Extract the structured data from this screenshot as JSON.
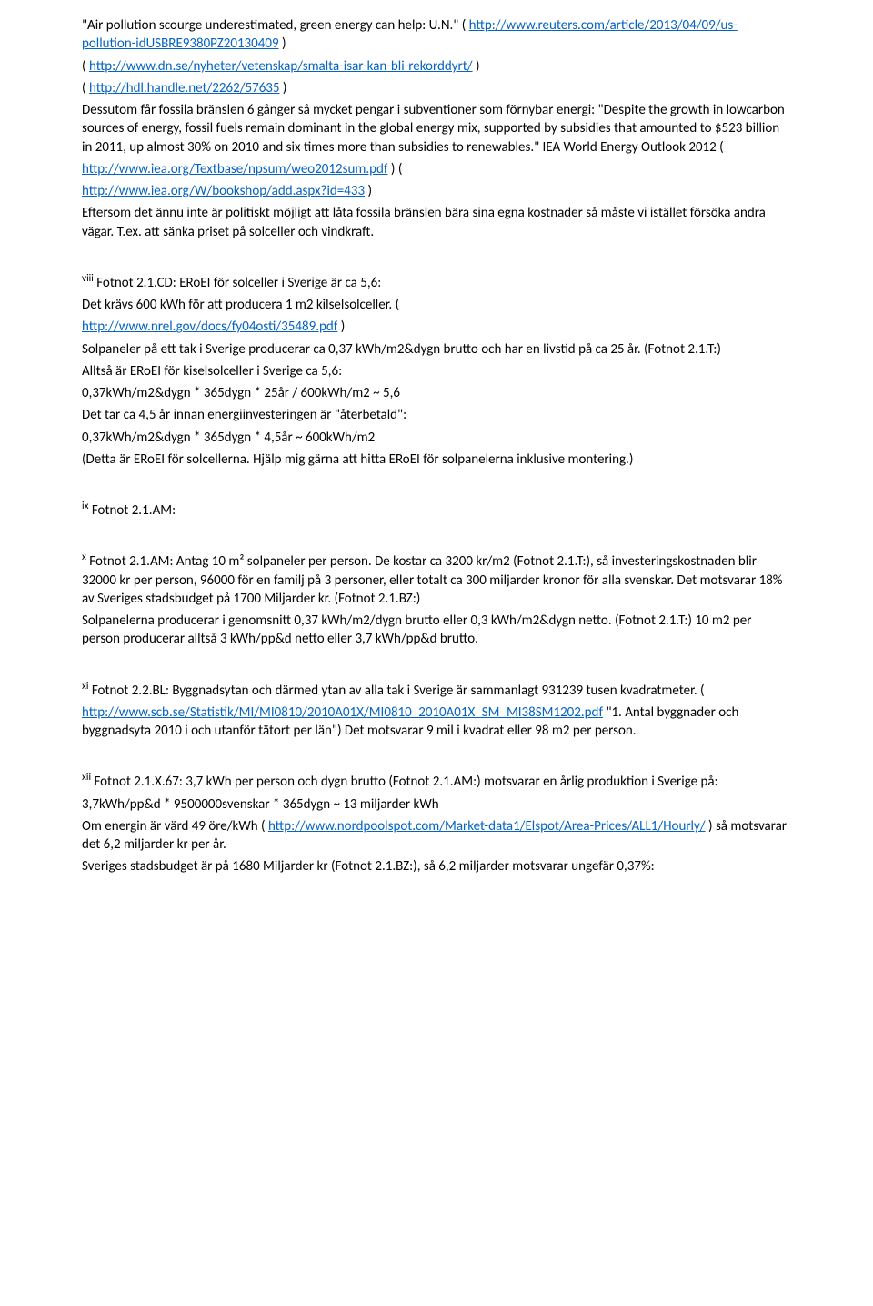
{
  "colors": {
    "text": "#000000",
    "link": "#0563c1",
    "background": "#ffffff"
  },
  "typography": {
    "font_family": "Calibri, Arial, sans-serif",
    "base_font_size_pt": 11,
    "line_height": 1.35
  },
  "b1": {
    "l1a": "\"Air pollution scourge underestimated, green energy can help: U.N.\"   (",
    "l1_link": "http://www.reuters.com/article/2013/04/09/us-pollution-idUSBRE9380PZ20130409",
    "l1b": " )",
    "l2a": "( ",
    "l2_link": "http://www.dn.se/nyheter/vetenskap/smalta-isar-kan-bli-rekorddyrt/",
    "l2b": " )",
    "l3a": "( ",
    "l3_link": "http://hdl.handle.net/2262/57635",
    "l3b": " )",
    "t4": "Dessutom får fossila bränslen 6 gånger så mycket pengar i subventioner som förnybar energi: \"Despite the growth in lowcarbon sources of energy, fossil fuels remain dominant in the global energy mix, supported by subsidies that amounted to $523 billion in 2011, up almost 30% on 2010 and six times more than subsidies to renewables.\"  IEA World Energy Outlook 2012   (",
    "l5_link": "http://www.iea.org/Textbase/npsum/weo2012sum.pdf",
    "l5b": " ) (",
    "l6_link": "http://www.iea.org/W/bookshop/add.aspx?id=433",
    "l6b": " )",
    "t7": "Eftersom det ännu inte är politiskt möjligt att låta fossila bränslen bära sina egna kostnader så måste vi istället försöka andra vägar. T.ex. att sänka priset på solceller och vindkraft."
  },
  "b2": {
    "sup": "viii",
    "h": " Fotnot 2.1.CD: ERoEI för solceller i Sverige är ca 5,6:",
    "t1": "Det krävs 600 kWh för att producera 1 m2 kilselsolceller. (",
    "link": "http://www.nrel.gov/docs/fy04osti/35489.pdf",
    "t1b": " )",
    "t2": "Solpaneler på ett tak i Sverige producerar ca 0,37 kWh/m2&dygn brutto och har en livstid på ca 25 år. (Fotnot 2.1.T:)",
    "t3": "Alltså är ERoEI för kiselsolceller i Sverige ca 5,6:",
    "t4": "0,37kWh/m2&dygn * 365dygn * 25år / 600kWh/m2 ~ 5,6",
    "t5": "Det tar ca 4,5 år innan energiinvesteringen är \"återbetald\":",
    "t6": "0,37kWh/m2&dygn * 365dygn * 4,5år ~ 600kWh/m2",
    "t7": "(Detta är ERoEI för solcellerna. Hjälp mig gärna att hitta ERoEI för solpanelerna inklusive montering.)"
  },
  "b3": {
    "sup": "ix",
    "h": " Fotnot 2.1.AM:"
  },
  "b4": {
    "sup": "x",
    "h": " Fotnot 2.1.AM: Antag 10 m² solpaneler per person. De kostar ca 3200 kr/m2 (Fotnot 2.1.T:), så investeringskostnaden blir 32000 kr per person, 96000 för en familj på 3 personer, eller totalt ca 300 miljarder kronor för alla svenskar. Det motsvarar 18% av Sveriges stadsbudget på 1700 Miljarder kr. (Fotnot 2.1.BZ:)",
    "t1": "Solpanelerna producerar i genomsnitt 0,37 kWh/m2/dygn brutto eller 0,3 kWh/m2&dygn netto. (Fotnot 2.1.T:) 10 m2 per person producerar alltså 3 kWh/pp&d netto eller 3,7 kWh/pp&d brutto."
  },
  "b5": {
    "sup": "xi",
    "h": " Fotnot 2.2.BL: Byggnadsytan och därmed ytan av alla tak i Sverige är sammanlagt 931239 tusen kvadratmeter. (",
    "link": "http://www.scb.se/Statistik/MI/MI0810/2010A01X/MI0810_2010A01X_SM_MI38SM1202.pdf",
    "t1a": "  \"1. Antal byggnader och byggnadsyta 2010 i och utanför tätort per län\") Det motsvarar 9 mil i kvadrat eller 98 m2 per person."
  },
  "b6": {
    "sup": "xii",
    "h": " Fotnot 2.1.X.67: 3,7 kWh per person och dygn brutto (Fotnot 2.1.AM:) motsvarar en årlig produktion i Sverige på:",
    "t1": "3,7kWh/pp&d * 9500000svenskar * 365dygn ~ 13 miljarder kWh",
    "t2a": "Om energin är värd 49 öre/kWh ( ",
    "link": "http://www.nordpoolspot.com/Market-data1/Elspot/Area-Prices/ALL1/Hourly/",
    "t2b": " ) så motsvarar det 6,2 miljarder kr per år.",
    "t3": "Sveriges stadsbudget är på 1680 Miljarder kr (Fotnot 2.1.BZ:), så 6,2 miljarder motsvarar ungefär 0,37%:"
  }
}
